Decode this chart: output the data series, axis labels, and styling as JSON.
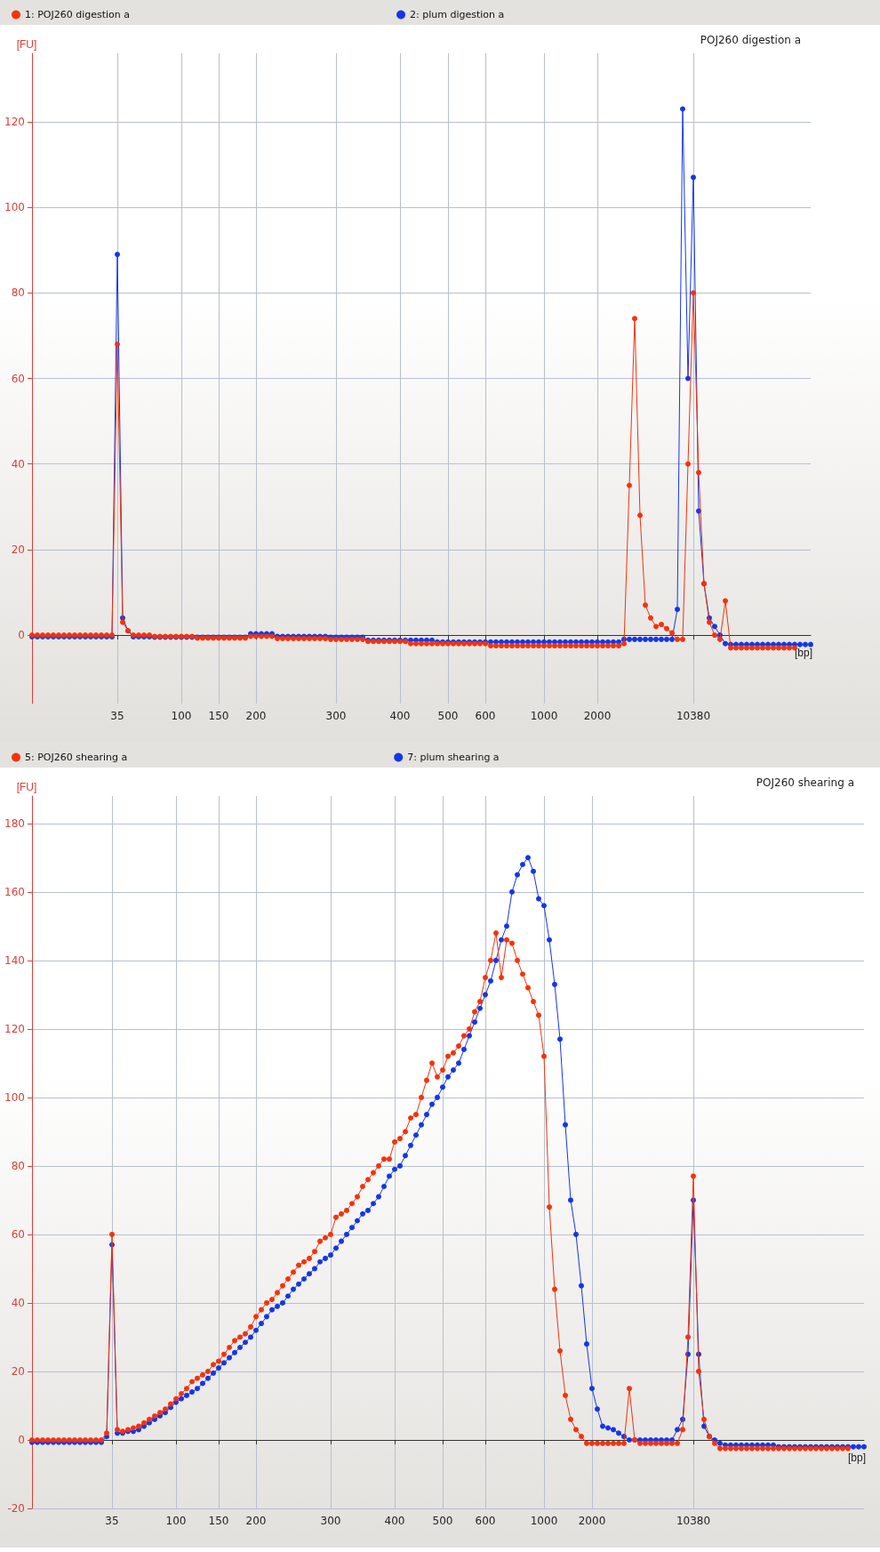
{
  "chart_data": [
    {
      "type": "line",
      "title": "POJ260 digestion a",
      "xlabel": "[bp]",
      "ylabel": "[FU]",
      "legend": "top left",
      "grid": true,
      "marker": "circle",
      "line_style": "solid",
      "categories": [
        null,
        null,
        null,
        null,
        null,
        null,
        null,
        null,
        null,
        null,
        null,
        null,
        null,
        null,
        null,
        null,
        "35",
        null,
        null,
        null,
        null,
        null,
        null,
        null,
        null,
        null,
        null,
        null,
        "100",
        null,
        null,
        null,
        null,
        null,
        null,
        "150",
        null,
        null,
        null,
        null,
        null,
        null,
        "200",
        null,
        null,
        null,
        null,
        null,
        null,
        null,
        null,
        null,
        null,
        null,
        null,
        null,
        null,
        "300",
        null,
        null,
        null,
        null,
        null,
        null,
        null,
        null,
        null,
        null,
        null,
        "400",
        null,
        null,
        null,
        null,
        null,
        null,
        null,
        null,
        "500",
        null,
        null,
        null,
        null,
        null,
        null,
        "600",
        null,
        null,
        null,
        null,
        null,
        null,
        null,
        null,
        null,
        null,
        "1000",
        null,
        null,
        null,
        null,
        null,
        null,
        null,
        null,
        null,
        "2000",
        null,
        null,
        null,
        null,
        null,
        null,
        null,
        null,
        null,
        null,
        null,
        null,
        null,
        null,
        null,
        null,
        null,
        "10380",
        null,
        null,
        null,
        null,
        null,
        null,
        null,
        null,
        null,
        null,
        null,
        null,
        null,
        null,
        null,
        null,
        null,
        null,
        null,
        null,
        null,
        null
      ],
      "ylim": [
        -16,
        136
      ],
      "yticks": [
        0,
        20,
        40,
        60,
        80,
        100,
        120
      ],
      "series": [
        {
          "name": "1: POJ260 digestion a",
          "color": "#f5320c",
          "values": [
            0,
            0,
            0,
            0,
            0,
            0,
            0,
            0,
            0,
            0,
            0,
            0,
            0,
            0,
            0,
            0,
            68,
            3,
            1,
            0,
            0,
            0,
            0,
            -0.3,
            -0.3,
            -0.3,
            -0.3,
            -0.3,
            -0.3,
            -0.3,
            -0.3,
            -0.7,
            -0.7,
            -0.7,
            -0.7,
            -0.7,
            -0.7,
            -0.7,
            -0.7,
            -0.7,
            -0.7,
            -0.3,
            -0.3,
            -0.3,
            -0.3,
            -0.3,
            -0.8,
            -0.8,
            -0.8,
            -0.8,
            -0.8,
            -0.8,
            -0.8,
            -0.8,
            -0.8,
            -0.8,
            -1,
            -1,
            -1,
            -1,
            -1,
            -1,
            -1,
            -1.5,
            -1.5,
            -1.5,
            -1.5,
            -1.5,
            -1.5,
            -1.5,
            -1.5,
            -2,
            -2,
            -2,
            -2,
            -2,
            -2,
            -2,
            -2,
            -2,
            -2,
            -2,
            -2,
            -2,
            -2,
            -2,
            -2.5,
            -2.5,
            -2.5,
            -2.5,
            -2.5,
            -2.5,
            -2.5,
            -2.5,
            -2.5,
            -2.5,
            -2.5,
            -2.5,
            -2.5,
            -2.5,
            -2.5,
            -2.5,
            -2.5,
            -2.5,
            -2.5,
            -2.5,
            -2.5,
            -2.5,
            -2.5,
            -2.5,
            -2.5,
            -2,
            35,
            74,
            28,
            7,
            4,
            2,
            2.5,
            1.5,
            0.5,
            -1,
            -1,
            40,
            80,
            38,
            12,
            3,
            0,
            -1,
            8,
            -3,
            -3,
            -3,
            -3,
            -3,
            -3,
            -3,
            -3,
            -3,
            -3,
            -3,
            -3,
            -3,
            null,
            null,
            null
          ]
        },
        {
          "name": "2: plum digestion a",
          "color": "#1436e8",
          "values": [
            -0.4,
            -0.4,
            -0.4,
            -0.4,
            -0.4,
            -0.4,
            -0.4,
            -0.4,
            -0.4,
            -0.4,
            -0.4,
            -0.4,
            -0.4,
            -0.4,
            -0.4,
            -0.4,
            89,
            4,
            1,
            -0.4,
            -0.4,
            -0.4,
            -0.4,
            -0.5,
            -0.5,
            -0.5,
            -0.5,
            -0.5,
            -0.5,
            -0.5,
            -0.5,
            -0.5,
            -0.5,
            -0.5,
            -0.5,
            -0.5,
            -0.5,
            -0.5,
            -0.5,
            -0.5,
            -0.5,
            0.3,
            0.3,
            0.3,
            0.3,
            0.3,
            -0.3,
            -0.3,
            -0.3,
            -0.3,
            -0.3,
            -0.3,
            -0.3,
            -0.3,
            -0.3,
            -0.3,
            -0.5,
            -0.5,
            -0.5,
            -0.5,
            -0.5,
            -0.5,
            -0.5,
            -1.2,
            -1.2,
            -1.2,
            -1.2,
            -1.2,
            -1.2,
            -1.2,
            -1.2,
            -1.2,
            -1.2,
            -1.2,
            -1.2,
            -1.2,
            -1.6,
            -1.6,
            -1.6,
            -1.6,
            -1.6,
            -1.6,
            -1.6,
            -1.6,
            -1.6,
            -1.6,
            -1.6,
            -1.6,
            -1.6,
            -1.6,
            -1.6,
            -1.6,
            -1.6,
            -1.6,
            -1.6,
            -1.6,
            -1.6,
            -1.6,
            -1.6,
            -1.6,
            -1.6,
            -1.6,
            -1.6,
            -1.6,
            -1.6,
            -1.6,
            -1.6,
            -1.6,
            -1.6,
            -1.6,
            -1.6,
            -1,
            -1,
            -1,
            -1,
            -1,
            -1,
            -1,
            -1,
            -1,
            -1,
            6,
            123,
            60,
            107,
            29,
            12,
            4,
            2,
            0,
            -2,
            -2.2,
            -2.2,
            -2.2,
            -2.2,
            -2.2,
            -2.2,
            -2.2,
            -2.2,
            -2.2,
            -2.2,
            -2.2,
            -2.2,
            -2.2,
            -2.2,
            -2.2,
            -2.2
          ]
        }
      ]
    },
    {
      "type": "line",
      "title": "POJ260 shearing a",
      "xlabel": "[bp]",
      "ylabel": "[FU]",
      "legend": "top left",
      "grid": true,
      "marker": "circle",
      "line_style": "solid",
      "categories": [
        null,
        null,
        null,
        null,
        null,
        null,
        null,
        null,
        null,
        null,
        null,
        null,
        null,
        null,
        null,
        "35",
        null,
        null,
        null,
        null,
        null,
        null,
        null,
        null,
        null,
        null,
        null,
        "100",
        null,
        null,
        null,
        null,
        null,
        null,
        null,
        "150",
        null,
        null,
        null,
        null,
        null,
        null,
        "200",
        null,
        null,
        null,
        null,
        null,
        null,
        null,
        null,
        null,
        null,
        null,
        null,
        null,
        "300",
        null,
        null,
        null,
        null,
        null,
        null,
        null,
        null,
        null,
        null,
        null,
        "400",
        null,
        null,
        null,
        null,
        null,
        null,
        null,
        null,
        "500",
        null,
        null,
        null,
        null,
        null,
        null,
        null,
        "600",
        null,
        null,
        null,
        null,
        null,
        null,
        null,
        null,
        null,
        null,
        "1000",
        null,
        null,
        null,
        null,
        null,
        null,
        null,
        null,
        "2000",
        null,
        null,
        null,
        null,
        null,
        null,
        null,
        null,
        null,
        null,
        null,
        null,
        null,
        null,
        null,
        null,
        null,
        null,
        "10380",
        null,
        null,
        null,
        null,
        null,
        null,
        null,
        null,
        null,
        null,
        null,
        null,
        null,
        null,
        null,
        null,
        null,
        null,
        null,
        null,
        null,
        null,
        null,
        null,
        null,
        null,
        null,
        null,
        null,
        null,
        null,
        null
      ],
      "ylim": [
        -20,
        188
      ],
      "yticks": [
        -20,
        0,
        20,
        40,
        60,
        80,
        100,
        120,
        140,
        160,
        180
      ],
      "series": [
        {
          "name": "5: POJ260 shearing a",
          "color": "#f5320c",
          "values": [
            0,
            0,
            0,
            0,
            0,
            0,
            0,
            0,
            0,
            0,
            0,
            0,
            0,
            0,
            2,
            60,
            3,
            2.5,
            3,
            3.5,
            4,
            5,
            6,
            7,
            8,
            9,
            10.5,
            12,
            13.5,
            15,
            17,
            18,
            19,
            20,
            22,
            23,
            25,
            27,
            29,
            30,
            31,
            33,
            36,
            38,
            40,
            41,
            43,
            45,
            47,
            49,
            51,
            52,
            53,
            55,
            58,
            59,
            60,
            65,
            66,
            67,
            69,
            71,
            74,
            76,
            78,
            80,
            82,
            82,
            87,
            88,
            90,
            94,
            95,
            100,
            105,
            110,
            106,
            108,
            112,
            113,
            115,
            118,
            120,
            125,
            128,
            135,
            140,
            148,
            135,
            146,
            145,
            140,
            136,
            132,
            128,
            124,
            112,
            68,
            44,
            26,
            13,
            6,
            3,
            1,
            -1,
            -1,
            -1,
            -1,
            -1,
            -1,
            -1,
            -1,
            15,
            0,
            -1,
            -1,
            -1,
            -1,
            -1,
            -1,
            -1,
            -1,
            3,
            30,
            77,
            20,
            6,
            1,
            -1,
            -2.5,
            -2.5,
            -2.5,
            -2.5,
            -2.5,
            -2.5,
            -2.5,
            -2.5,
            -2.5,
            -2.5,
            -2.5,
            -2.5,
            -2.5,
            -2.5,
            -2.5,
            -2.5,
            -2.5,
            -2.5,
            -2.5,
            -2.5,
            -2.5,
            -2.5,
            -2.5,
            -2.5,
            -2.5,
            null,
            null,
            null
          ]
        },
        {
          "name": "7: plum shearing a",
          "color": "#1436e8",
          "values": [
            -0.7,
            -0.7,
            -0.7,
            -0.7,
            -0.7,
            -0.7,
            -0.7,
            -0.7,
            -0.7,
            -0.7,
            -0.7,
            -0.7,
            -0.7,
            -0.7,
            1,
            57,
            2,
            2,
            2.5,
            2.5,
            3,
            4,
            5,
            6,
            7,
            8,
            9.5,
            11,
            12,
            13,
            14,
            15,
            16.5,
            18,
            19.5,
            21,
            22.5,
            24,
            25.5,
            27,
            28.5,
            30,
            32,
            34,
            36,
            38,
            39,
            40,
            42,
            44,
            45.5,
            47,
            48.5,
            50,
            52,
            53,
            54,
            56,
            58,
            60,
            62,
            64,
            66,
            67,
            69,
            71,
            74,
            77,
            79,
            80,
            83,
            86,
            89,
            92,
            95,
            98,
            100,
            103,
            106,
            108,
            110,
            114,
            118,
            122,
            126,
            130,
            134,
            140,
            146,
            150,
            160,
            165,
            168,
            170,
            166,
            158,
            156,
            146,
            133,
            117,
            92,
            70,
            60,
            45,
            28,
            15,
            9,
            4,
            3.5,
            3,
            2,
            1,
            0,
            0,
            0,
            0,
            0,
            0,
            0,
            0,
            0,
            3,
            6,
            25,
            70,
            25,
            4,
            1,
            0,
            -1,
            -1.5,
            -1.5,
            -1.5,
            -1.5,
            -1.5,
            -1.5,
            -1.5,
            -1.5,
            -1.5,
            -1.5,
            -2,
            -2,
            -2,
            -2,
            -2,
            -2,
            -2,
            -2,
            -2,
            -2,
            -2,
            -2,
            -2,
            -2,
            -2,
            -2,
            -2
          ]
        }
      ]
    }
  ]
}
